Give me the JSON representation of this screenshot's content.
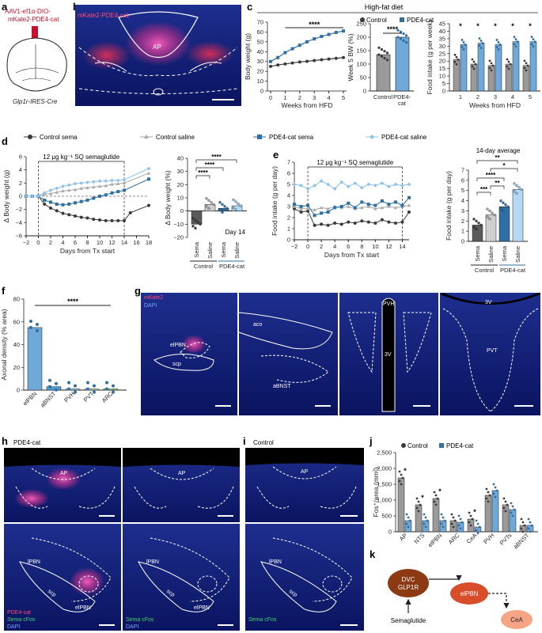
{
  "panels": {
    "a": "a",
    "b": "b",
    "c": "c",
    "d": "d",
    "e": "e",
    "f": "f",
    "g": "g",
    "h": "h",
    "i": "i",
    "j": "j",
    "k": "k"
  },
  "colors": {
    "control": "#3a3a3a",
    "control_saline": "#a8a8a8",
    "pde4": "#2e6fa4",
    "pde4_saline": "#8cc2ea",
    "brain_blue": "#0c1a6a",
    "cfos": "#3ed26a",
    "mkate": "#e0349a",
    "dvc_node": "#8b3a14",
    "elpbn_node": "#d94e2a",
    "cea_node": "#f5a585"
  },
  "a": {
    "virus": [
      "AAV1-ef1α-DIO-",
      "mKate2-PDE4-cat"
    ],
    "mouse": "Glp1r-IRES-Cre"
  },
  "b": {
    "label": "mKate2-PDE4-cat",
    "region": "AP"
  },
  "c": {
    "diet": "High-fat diet",
    "legend": {
      "control": "Control",
      "pde4": "PDE4-cat"
    },
    "weight": {
      "ylabel": "Body weight (g)",
      "xlabel": "Weeks from HFD",
      "sig": "****",
      "yticks": [
        "0",
        "10",
        "20",
        "30",
        "40",
        "50",
        "60",
        "70"
      ],
      "xticks": [
        "0",
        "1",
        "2",
        "3",
        "4",
        "5"
      ]
    },
    "week5": {
      "ylabel": "Week 5 BW (%)",
      "sig": "****",
      "yticks": [
        "0",
        "50",
        "100",
        "150",
        "200",
        "250"
      ],
      "cats": [
        "Control",
        "PDE4-",
        "cat"
      ]
    },
    "intake": {
      "ylabel": "Food intake (g per week)",
      "xlabel": "Weeks from HFD",
      "yticks": [
        "0",
        "5",
        "10",
        "15",
        "20",
        "25",
        "30",
        "35",
        "40",
        "45"
      ],
      "xticks": [
        "1",
        "2",
        "3",
        "4",
        "5"
      ],
      "star": "*"
    }
  },
  "chart_data": [
    {
      "type": "line",
      "panel": "c-weight",
      "xlabel": "Weeks from HFD",
      "ylabel": "Body weight (g)",
      "ylim": [
        0,
        70
      ],
      "x": [
        0,
        0.5,
        1,
        1.5,
        2,
        2.5,
        3,
        3.5,
        4,
        4.5,
        5
      ],
      "series": [
        {
          "name": "Control",
          "values": [
            25,
            26.5,
            27.5,
            28.5,
            29.5,
            30.2,
            31,
            31.8,
            32.5,
            33.2,
            34
          ]
        },
        {
          "name": "PDE4-cat",
          "values": [
            30,
            34,
            39,
            43,
            46.5,
            50,
            53,
            55.5,
            57.5,
            59.5,
            61
          ]
        }
      ]
    },
    {
      "type": "bar",
      "panel": "c-week5",
      "ylabel": "Week 5 BW (%)",
      "ylim": [
        0,
        250
      ],
      "categories": [
        "Control",
        "PDE4-cat"
      ],
      "values": [
        135,
        200
      ]
    },
    {
      "type": "bar",
      "panel": "c-intake",
      "xlabel": "Weeks from HFD",
      "ylabel": "Food intake (g per week)",
      "ylim": [
        0,
        45
      ],
      "categories": [
        "1",
        "2",
        "3",
        "4",
        "5"
      ],
      "series": [
        {
          "name": "Control",
          "values": [
            21,
            18,
            17,
            18,
            17
          ]
        },
        {
          "name": "PDE4-cat",
          "values": [
            31,
            32,
            31,
            33,
            33
          ]
        }
      ]
    },
    {
      "type": "line",
      "panel": "d",
      "xlabel": "Days from Tx start",
      "ylabel": "Δ Body weight (g)",
      "ylim": [
        -6,
        6
      ],
      "x": [
        -2,
        -1,
        0,
        1,
        2,
        3,
        4,
        5,
        6,
        7,
        8,
        9,
        10,
        11,
        12,
        13,
        14,
        15,
        16,
        18
      ],
      "series": [
        {
          "name": "Control sema",
          "values": [
            0,
            0,
            0,
            -1.2,
            -1.8,
            -2.2,
            -2.6,
            -2.8,
            -3,
            -3.2,
            -3.3,
            -3.5,
            -3.6,
            -3.7,
            -3.7,
            -3.7,
            -3.7,
            -2.5,
            null,
            -1.4
          ]
        },
        {
          "name": "Control saline",
          "values": [
            0,
            0,
            0,
            0.3,
            0.4,
            0.6,
            0.8,
            0.9,
            1,
            1.2,
            1.3,
            1.4,
            1.5,
            1.6,
            1.8,
            1.9,
            2,
            null,
            null,
            3.5
          ]
        },
        {
          "name": "PDE4-cat sema",
          "values": [
            0,
            0,
            0,
            -0.6,
            -0.9,
            -1.2,
            -1.3,
            -1.2,
            -1,
            -0.8,
            -0.6,
            -0.3,
            0,
            0.2,
            0.5,
            0.7,
            0.9,
            null,
            null,
            2.6
          ]
        },
        {
          "name": "PDE4-cat saline",
          "values": [
            0,
            0,
            0,
            0.5,
            0.9,
            1.2,
            1.5,
            1.7,
            1.9,
            2,
            2.1,
            2.2,
            2.3,
            2.3,
            2.4,
            2.4,
            2.5,
            null,
            null,
            4.2
          ]
        }
      ]
    },
    {
      "type": "bar",
      "panel": "d-day14",
      "ylabel": "Δ Body weight (%)",
      "ylim": [
        -20,
        40
      ],
      "categories": [
        "Sema",
        "Saline",
        "Sema",
        "Saline"
      ],
      "values": [
        -10,
        5,
        2,
        4
      ]
    },
    {
      "type": "line",
      "panel": "e",
      "xlabel": "Days from Tx start",
      "ylabel": "Food intake (g per day)",
      "ylim": [
        0,
        7
      ],
      "x": [
        -2,
        -1,
        0,
        1,
        2,
        3,
        4,
        5,
        6,
        7,
        8,
        9,
        10,
        11,
        12,
        13,
        14,
        15
      ],
      "series": [
        {
          "name": "Control sema",
          "values": [
            2.8,
            2.5,
            2.6,
            1.3,
            1.4,
            1.3,
            1.5,
            1.4,
            1.6,
            1.5,
            1.7,
            1.6,
            1.5,
            1.8,
            1.6,
            1.5,
            1.6,
            2.5
          ]
        },
        {
          "name": "Control saline",
          "values": [
            3,
            2.8,
            2.8,
            2.7,
            2.9,
            2.8,
            3,
            2.9,
            3,
            2.8,
            2.9,
            3,
            2.8,
            2.9,
            3,
            2.9,
            3,
            3.1
          ]
        },
        {
          "name": "PDE4-cat sema",
          "values": [
            3.2,
            3,
            3.1,
            2.2,
            2.4,
            2.5,
            2.9,
            3,
            3.3,
            2.9,
            3.4,
            3.2,
            3.1,
            3.5,
            3.2,
            3.4,
            3.1,
            3.8
          ]
        },
        {
          "name": "PDE4-cat saline",
          "values": [
            5,
            4.9,
            4.6,
            4.9,
            5.3,
            5,
            4.6,
            5.2,
            4.8,
            5.1,
            4.7,
            5,
            4.9,
            5.1,
            4.8,
            5,
            4.9,
            5
          ]
        }
      ]
    },
    {
      "type": "bar",
      "panel": "e-average",
      "title": "14-day average",
      "ylabel": "Food intake (g per day)",
      "ylim": [
        0,
        7
      ],
      "categories": [
        "Sema",
        "Saline",
        "Sema",
        "Saline"
      ],
      "values": [
        1.6,
        2.6,
        3.4,
        5.1
      ]
    },
    {
      "type": "bar",
      "panel": "f",
      "ylabel": "Axonal density (% area)",
      "ylim": [
        0,
        80
      ],
      "categories": [
        "elPBN",
        "aBNST",
        "PVH",
        "PVT",
        "ARC"
      ],
      "values": [
        55,
        3,
        1,
        1,
        1
      ]
    },
    {
      "type": "bar",
      "panel": "j",
      "ylabel": "Fos+/area (mm²)",
      "ylim": [
        0,
        2500
      ],
      "categories": [
        "AP",
        "NTS",
        "elPBN",
        "ARC",
        "CeA",
        "PVH",
        "PVTs",
        "aBNST"
      ],
      "series": [
        {
          "name": "Control",
          "values": [
            1700,
            850,
            1050,
            350,
            400,
            1150,
            850,
            200
          ]
        },
        {
          "name": "PDE4-cat",
          "values": [
            350,
            350,
            350,
            300,
            150,
            1300,
            700,
            200
          ]
        }
      ]
    }
  ],
  "d": {
    "legend": [
      "Control sema",
      "Control saline",
      "PDE4-cat sema",
      "PDE4-cat saline"
    ],
    "treatment": "12 μg kg⁻¹ SQ semaglutide",
    "ylabel": "Δ Body weight (g)",
    "xlabel": "Days from Tx start",
    "yticks": [
      "−6",
      "−4",
      "−2",
      "0",
      "2",
      "4",
      "6"
    ],
    "xticks": [
      "−2",
      "0",
      "2",
      "4",
      "6",
      "8",
      "10",
      "12",
      "14",
      "16",
      "18"
    ],
    "bar": {
      "ylabel": "Δ Body weight (%)",
      "yticks": [
        "−20",
        "−10",
        "0",
        "10",
        "20",
        "30",
        "40"
      ],
      "cats": [
        "Sema",
        "Saline",
        "Sema",
        "Saline"
      ],
      "groups": [
        "Control",
        "PDE4-cat"
      ],
      "day": "Day 14",
      "sig": "****"
    }
  },
  "e": {
    "treatment": "12 μg kg⁻¹ SQ semaglutide",
    "ylabel": "Food intake (g per day)",
    "xlabel": "Days from Tx start",
    "yticks": [
      "0",
      "1",
      "2",
      "3",
      "4",
      "5",
      "6",
      "7"
    ],
    "xticks": [
      "−2",
      "0",
      "2",
      "4",
      "6",
      "8",
      "10",
      "12",
      "14"
    ],
    "bar": {
      "title": "14-day average",
      "ylabel": "Food intake (g per day)",
      "yticks": [
        "0",
        "1",
        "2",
        "3",
        "4",
        "5",
        "6",
        "7"
      ],
      "cats": [
        "Sema",
        "Saline",
        "Sema",
        "Saline"
      ],
      "groups": [
        "Control",
        "PDE4-cat"
      ],
      "sig": [
        "**",
        "*",
        "****",
        "***",
        "**"
      ]
    }
  },
  "f": {
    "ylabel": "Axonal density (% area)",
    "yticks": [
      "0",
      "20",
      "40",
      "60",
      "80"
    ],
    "cats": [
      "elPBN",
      "aBNST",
      "PVH",
      "PVT",
      "ARC"
    ],
    "sig": "****"
  },
  "g": {
    "mkate": "mKate2",
    "dapi": "DAPI",
    "elpbn": "elPBN",
    "scp": "scp",
    "aco": "aco",
    "abnst": "aBNST",
    "pvh": "PVH",
    "v3": "3V",
    "pvt": "PVT"
  },
  "h": {
    "title": "PDE4-cat",
    "ap": "AP",
    "lpbn": "lPBN",
    "scp": "scp",
    "elpbn": "elPBN",
    "pde4": "PDE4-cat",
    "sema": "Sema cFos",
    "dapi": "DAPI"
  },
  "i": {
    "title": "Control",
    "ap": "AP",
    "lpbn": "lPBN",
    "scp": "scp",
    "sema": "Sema cFos",
    "dapi": "DAPI"
  },
  "j": {
    "legend": {
      "control": "Control",
      "pde4": "PDE4-cat"
    },
    "ylabel": "Fos⁺/area (mm²)",
    "yticks": [
      "0",
      "500",
      "1,000",
      "1,500",
      "2,000",
      "2,500"
    ],
    "cats": [
      "AP",
      "NTS",
      "elPBN",
      "ARC",
      "CeA",
      "PVH",
      "PVTs",
      "aBNST"
    ],
    "star": "*"
  },
  "k": {
    "dvc": [
      "DVC",
      "GLP1R"
    ],
    "elpbn": "elPBN",
    "cea": "CeA",
    "sema": "Semaglutide"
  }
}
